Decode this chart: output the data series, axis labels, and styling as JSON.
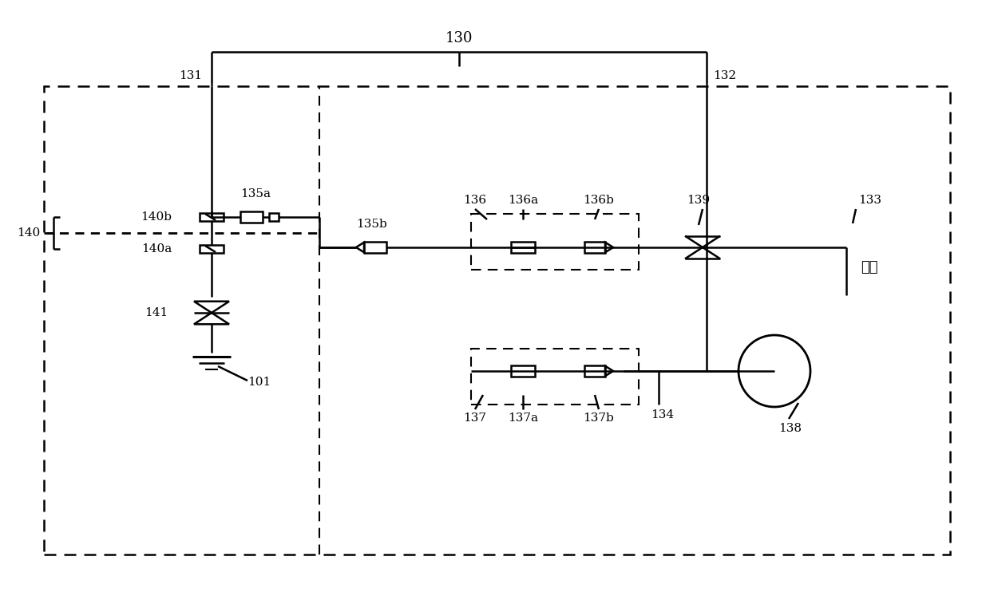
{
  "bg_color": "#ffffff",
  "line_color": "#000000",
  "label_130": "130",
  "label_131": "131",
  "label_132": "132",
  "label_133": "133",
  "label_134": "134",
  "label_135a": "135a",
  "label_135b": "135b",
  "label_136": "136",
  "label_136a": "136a",
  "label_136b": "136b",
  "label_137": "137",
  "label_137a": "137a",
  "label_137b": "137b",
  "label_138": "138",
  "label_139": "139",
  "label_140": "140",
  "label_140a": "140a",
  "label_140b": "140b",
  "label_141": "141",
  "label_101": "101",
  "label_xieya": "泄压",
  "font_size_label": 11,
  "font_size_main": 13,
  "lw": 1.8
}
